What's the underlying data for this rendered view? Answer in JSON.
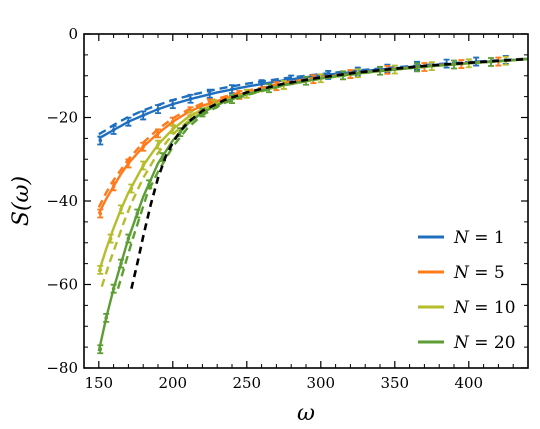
{
  "chart_data": {
    "type": "line",
    "xlabel": "ω",
    "ylabel": "S(ω)",
    "xlim": [
      140,
      440
    ],
    "ylim": [
      -80,
      0
    ],
    "xticks": [
      150,
      200,
      250,
      300,
      350,
      400
    ],
    "yticks": [
      0,
      -20,
      -40,
      -60,
      -80
    ],
    "legend_position": "bottom-right",
    "series": [
      {
        "name": "N = 1",
        "legend": [
          "N",
          " = 1"
        ],
        "color": "#1f6fbf",
        "solid": [
          [
            150,
            -25
          ],
          [
            155,
            -24
          ],
          [
            160,
            -23
          ],
          [
            165,
            -22
          ],
          [
            170,
            -21
          ],
          [
            180,
            -19.5
          ],
          [
            190,
            -18
          ],
          [
            200,
            -16.8
          ],
          [
            215,
            -15.3
          ],
          [
            230,
            -14
          ],
          [
            250,
            -12.6
          ],
          [
            275,
            -11.1
          ],
          [
            300,
            -9.9
          ],
          [
            325,
            -9
          ],
          [
            350,
            -8.2
          ],
          [
            375,
            -7.5
          ],
          [
            400,
            -6.9
          ],
          [
            425,
            -6.3
          ],
          [
            440,
            -6
          ]
        ],
        "dashed": [
          [
            150,
            -24
          ],
          [
            155,
            -23
          ],
          [
            160,
            -21.8
          ],
          [
            165,
            -20.8
          ],
          [
            170,
            -19.9
          ],
          [
            180,
            -18.3
          ],
          [
            190,
            -17
          ],
          [
            200,
            -15.8
          ],
          [
            215,
            -14.4
          ],
          [
            230,
            -13.2
          ],
          [
            250,
            -11.9
          ],
          [
            275,
            -10.6
          ],
          [
            300,
            -9.6
          ],
          [
            325,
            -8.7
          ],
          [
            350,
            -8
          ],
          [
            375,
            -7.3
          ],
          [
            400,
            -6.7
          ],
          [
            425,
            -6.2
          ],
          [
            440,
            -5.9
          ]
        ],
        "points": [
          [
            151,
            -25.5
          ],
          [
            160,
            -23
          ],
          [
            170,
            -21
          ],
          [
            180,
            -19.5
          ],
          [
            190,
            -18
          ],
          [
            200,
            -16.8
          ],
          [
            212,
            -15.5
          ],
          [
            225,
            -14.3
          ],
          [
            240,
            -13.2
          ],
          [
            260,
            -12
          ],
          [
            280,
            -10.9
          ],
          [
            305,
            -9.8
          ],
          [
            325,
            -9
          ],
          [
            345,
            -8.3
          ],
          [
            365,
            -7.6
          ],
          [
            385,
            -7.1
          ],
          [
            405,
            -6.6
          ],
          [
            425,
            -6.2
          ]
        ]
      },
      {
        "name": "N = 5",
        "legend": [
          "N",
          " = 5"
        ],
        "color": "#ff7a1a",
        "solid": [
          [
            150,
            -43
          ],
          [
            155,
            -39.5
          ],
          [
            160,
            -36.5
          ],
          [
            165,
            -33.5
          ],
          [
            170,
            -31
          ],
          [
            180,
            -27
          ],
          [
            190,
            -23.8
          ],
          [
            200,
            -21
          ],
          [
            210,
            -18.8
          ],
          [
            220,
            -17.2
          ],
          [
            235,
            -15.5
          ],
          [
            250,
            -14
          ],
          [
            275,
            -12
          ],
          [
            300,
            -10.5
          ],
          [
            325,
            -9.4
          ],
          [
            350,
            -8.5
          ],
          [
            375,
            -7.7
          ],
          [
            400,
            -7
          ],
          [
            425,
            -6.4
          ],
          [
            440,
            -6
          ]
        ],
        "dashed": [
          [
            150,
            -41.5
          ],
          [
            155,
            -38
          ],
          [
            160,
            -35
          ],
          [
            165,
            -32.5
          ],
          [
            170,
            -30
          ],
          [
            180,
            -26
          ],
          [
            190,
            -22.8
          ],
          [
            200,
            -20.2
          ],
          [
            210,
            -18.2
          ],
          [
            220,
            -16.6
          ],
          [
            235,
            -15
          ],
          [
            250,
            -13.6
          ],
          [
            275,
            -11.7
          ],
          [
            300,
            -10.3
          ],
          [
            325,
            -9.2
          ],
          [
            350,
            -8.3
          ],
          [
            375,
            -7.6
          ],
          [
            400,
            -6.9
          ],
          [
            425,
            -6.3
          ],
          [
            440,
            -5.9
          ]
        ],
        "points": [
          [
            151,
            -43
          ],
          [
            160,
            -36.5
          ],
          [
            170,
            -31
          ],
          [
            180,
            -27
          ],
          [
            190,
            -23.8
          ],
          [
            200,
            -21
          ],
          [
            212,
            -18.5
          ],
          [
            225,
            -16.6
          ],
          [
            245,
            -14.6
          ],
          [
            270,
            -12.5
          ],
          [
            295,
            -10.8
          ],
          [
            320,
            -9.6
          ],
          [
            345,
            -8.6
          ],
          [
            370,
            -7.9
          ],
          [
            395,
            -7.2
          ],
          [
            420,
            -6.6
          ]
        ]
      },
      {
        "name": "N = 10",
        "legend": [
          "N",
          " = 10"
        ],
        "color": "#b5bd2a",
        "solid": [
          [
            150,
            -57
          ],
          [
            155,
            -51.5
          ],
          [
            160,
            -46.5
          ],
          [
            165,
            -42
          ],
          [
            170,
            -38
          ],
          [
            180,
            -31.5
          ],
          [
            190,
            -26.5
          ],
          [
            200,
            -22.8
          ],
          [
            210,
            -20
          ],
          [
            220,
            -18
          ],
          [
            235,
            -15.9
          ],
          [
            250,
            -14.3
          ],
          [
            275,
            -12.2
          ],
          [
            300,
            -10.6
          ],
          [
            325,
            -9.4
          ],
          [
            350,
            -8.5
          ],
          [
            375,
            -7.7
          ],
          [
            400,
            -7
          ],
          [
            425,
            -6.4
          ],
          [
            440,
            -6
          ]
        ],
        "dashed": [
          [
            152,
            -60.5
          ],
          [
            157,
            -55
          ],
          [
            162,
            -50
          ],
          [
            167,
            -45
          ],
          [
            172,
            -40.5
          ],
          [
            180,
            -34.5
          ],
          [
            190,
            -28.5
          ],
          [
            200,
            -24
          ],
          [
            210,
            -21
          ],
          [
            220,
            -18.6
          ],
          [
            235,
            -16.2
          ],
          [
            250,
            -14.5
          ],
          [
            275,
            -12.3
          ],
          [
            300,
            -10.7
          ],
          [
            325,
            -9.5
          ],
          [
            350,
            -8.5
          ],
          [
            375,
            -7.7
          ],
          [
            400,
            -7
          ],
          [
            425,
            -6.4
          ],
          [
            440,
            -6
          ]
        ],
        "points": [
          [
            151,
            -56.5
          ],
          [
            158,
            -49
          ],
          [
            165,
            -42
          ],
          [
            172,
            -37
          ],
          [
            180,
            -31.5
          ],
          [
            190,
            -26.5
          ],
          [
            200,
            -22.8
          ],
          [
            212,
            -19.6
          ],
          [
            228,
            -16.8
          ],
          [
            250,
            -14.3
          ],
          [
            275,
            -12.2
          ],
          [
            300,
            -10.6
          ],
          [
            325,
            -9.4
          ],
          [
            350,
            -8.5
          ],
          [
            375,
            -7.7
          ],
          [
            400,
            -7
          ],
          [
            425,
            -6.4
          ]
        ]
      },
      {
        "name": "N = 20",
        "legend": [
          "N",
          " = 20"
        ],
        "color": "#5c9e33",
        "solid": [
          [
            150,
            -76
          ],
          [
            155,
            -68
          ],
          [
            160,
            -61
          ],
          [
            165,
            -55
          ],
          [
            170,
            -49
          ],
          [
            175,
            -44
          ],
          [
            180,
            -39
          ],
          [
            190,
            -31
          ],
          [
            200,
            -25.5
          ],
          [
            210,
            -21.5
          ],
          [
            220,
            -18.8
          ],
          [
            235,
            -16.2
          ],
          [
            250,
            -14.4
          ],
          [
            275,
            -12.2
          ],
          [
            300,
            -10.6
          ],
          [
            325,
            -9.4
          ],
          [
            350,
            -8.5
          ],
          [
            375,
            -7.7
          ],
          [
            400,
            -7
          ],
          [
            425,
            -6.4
          ],
          [
            440,
            -6
          ]
        ],
        "dashed": [
          [
            163,
            -61
          ],
          [
            168,
            -55
          ],
          [
            173,
            -49
          ],
          [
            178,
            -43.5
          ],
          [
            183,
            -38
          ],
          [
            190,
            -33
          ],
          [
            200,
            -27
          ],
          [
            210,
            -22.5
          ],
          [
            220,
            -19.4
          ],
          [
            235,
            -16.5
          ],
          [
            250,
            -14.6
          ],
          [
            275,
            -12.3
          ],
          [
            300,
            -10.7
          ],
          [
            325,
            -9.5
          ],
          [
            350,
            -8.5
          ],
          [
            375,
            -7.7
          ],
          [
            400,
            -7
          ],
          [
            425,
            -6.4
          ],
          [
            440,
            -6
          ]
        ],
        "points": [
          [
            151,
            -75.5
          ],
          [
            155,
            -68
          ],
          [
            160,
            -61
          ],
          [
            165,
            -55
          ],
          [
            170,
            -49
          ],
          [
            176,
            -43
          ],
          [
            184,
            -36
          ],
          [
            193,
            -29.5
          ],
          [
            205,
            -23.5
          ],
          [
            220,
            -18.8
          ],
          [
            240,
            -15.6
          ],
          [
            265,
            -13
          ],
          [
            290,
            -11.2
          ],
          [
            315,
            -9.9
          ],
          [
            340,
            -8.8
          ],
          [
            365,
            -8
          ],
          [
            390,
            -7.3
          ],
          [
            415,
            -6.7
          ]
        ]
      }
    ],
    "reference": {
      "color": "#000000",
      "dashed": [
        [
          172,
          -61
        ],
        [
          176,
          -55
        ],
        [
          180,
          -48.5
        ],
        [
          185,
          -41
        ],
        [
          190,
          -34.5
        ],
        [
          195,
          -29.5
        ],
        [
          200,
          -26
        ],
        [
          205,
          -23.3
        ],
        [
          210,
          -21.2
        ],
        [
          220,
          -18.4
        ],
        [
          235,
          -15.8
        ],
        [
          250,
          -14
        ],
        [
          275,
          -11.9
        ],
        [
          300,
          -10.4
        ],
        [
          325,
          -9.2
        ],
        [
          350,
          -8.3
        ],
        [
          375,
          -7.5
        ],
        [
          400,
          -6.9
        ],
        [
          425,
          -6.3
        ],
        [
          440,
          -6
        ]
      ]
    }
  }
}
